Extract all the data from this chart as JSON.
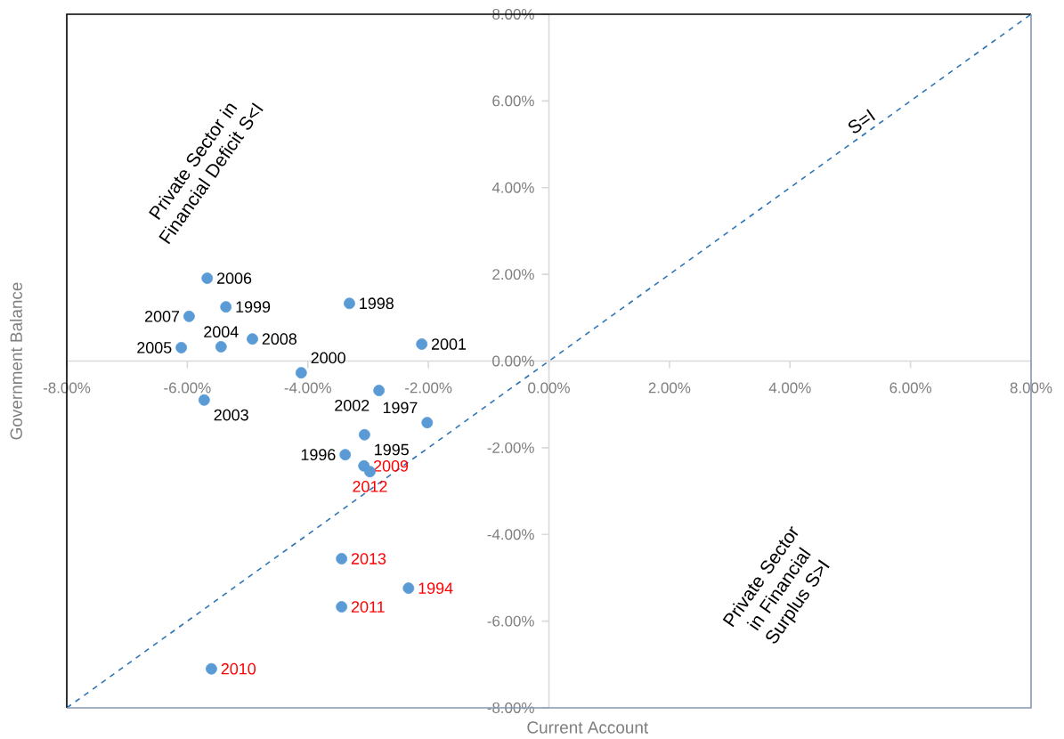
{
  "chart_data": {
    "type": "scatter",
    "xlabel": "Current Account",
    "ylabel": "Government Balance",
    "xlim": [
      -8,
      8
    ],
    "ylim": [
      -8,
      8
    ],
    "xticks": [
      {
        "value": -8,
        "label": "-8.00%"
      },
      {
        "value": -6,
        "label": "-6.00%"
      },
      {
        "value": -4,
        "label": "-4.00%"
      },
      {
        "value": -2,
        "label": "-2.00%"
      },
      {
        "value": 0,
        "label": "0.00%"
      },
      {
        "value": 2,
        "label": "2.00%"
      },
      {
        "value": 4,
        "label": "4.00%"
      },
      {
        "value": 6,
        "label": "6.00%"
      },
      {
        "value": 8,
        "label": "8.00%"
      }
    ],
    "yticks": [
      {
        "value": -8,
        "label": "-8.00%"
      },
      {
        "value": -6,
        "label": "-6.00%"
      },
      {
        "value": -4,
        "label": "-4.00%"
      },
      {
        "value": -2,
        "label": "-2.00%"
      },
      {
        "value": 0,
        "label": "0.00%"
      },
      {
        "value": 2,
        "label": "2.00%"
      },
      {
        "value": 4,
        "label": "4.00%"
      },
      {
        "value": 6,
        "label": "6.00%"
      },
      {
        "value": 8,
        "label": "8.00%"
      }
    ],
    "series": [
      {
        "color": "#5b9bd5",
        "x": [
          -5.67,
          -5.97,
          -5.36,
          -3.31,
          -6.1,
          -5.44,
          -4.92,
          -2.11,
          -4.11,
          -2.82,
          -5.72,
          -2.02,
          -3.06,
          -3.38
        ],
        "values": [
          1.91,
          1.03,
          1.25,
          1.33,
          0.31,
          0.33,
          0.51,
          0.39,
          -0.27,
          -0.68,
          -0.9,
          -1.42,
          -1.7,
          -2.16
        ]
      },
      {
        "color": "#5b9bd5",
        "x": [
          -3.07,
          -2.97,
          -3.44,
          -2.33,
          -3.44,
          -5.6
        ],
        "values": [
          -2.42,
          -2.55,
          -4.56,
          -5.24,
          -5.67,
          -7.1
        ]
      },
      {
        "type": "line",
        "color": "#2e75b6",
        "line_style": "dashed",
        "x": [
          -8,
          8
        ],
        "values": [
          -8,
          8
        ]
      }
    ],
    "annotations": [
      {
        "text": "S=I",
        "x": 5.3,
        "y": 5.3
      },
      {
        "text": "2006",
        "x": -5.67,
        "y": 1.91
      },
      {
        "text": "2007",
        "x": -5.97,
        "y": 1.03
      },
      {
        "text": "1999",
        "x": -5.36,
        "y": 1.25
      },
      {
        "text": "1998",
        "x": -3.31,
        "y": 1.33
      },
      {
        "text": "2005",
        "x": -6.1,
        "y": 0.31
      },
      {
        "text": "2004",
        "x": -5.44,
        "y": 0.33
      },
      {
        "text": "2008",
        "x": -4.92,
        "y": 0.51
      },
      {
        "text": "2001",
        "x": -2.11,
        "y": 0.39
      },
      {
        "text": "2000",
        "x": -4.11,
        "y": -0.27
      },
      {
        "text": "2002",
        "x": -2.82,
        "y": -0.68
      },
      {
        "text": "2003",
        "x": -5.72,
        "y": -0.9
      },
      {
        "text": "1997",
        "x": -2.02,
        "y": -1.42
      },
      {
        "text": "1995",
        "x": -3.06,
        "y": -1.7
      },
      {
        "text": "1996",
        "x": -3.38,
        "y": -2.16
      },
      {
        "text": "2009",
        "x": -3.07,
        "y": -2.42
      },
      {
        "text": "2012",
        "x": -2.97,
        "y": -2.55
      },
      {
        "text": "2013",
        "x": -3.44,
        "y": -4.56
      },
      {
        "text": "1994",
        "x": -2.33,
        "y": -5.24
      },
      {
        "text": "2011",
        "x": -3.44,
        "y": -5.67
      },
      {
        "text": "2010",
        "x": -5.6,
        "y": -7.1
      },
      "Private Sector in Financial Deficit S<I",
      "Private Sector in Financial Surplus S>I"
    ]
  }
}
